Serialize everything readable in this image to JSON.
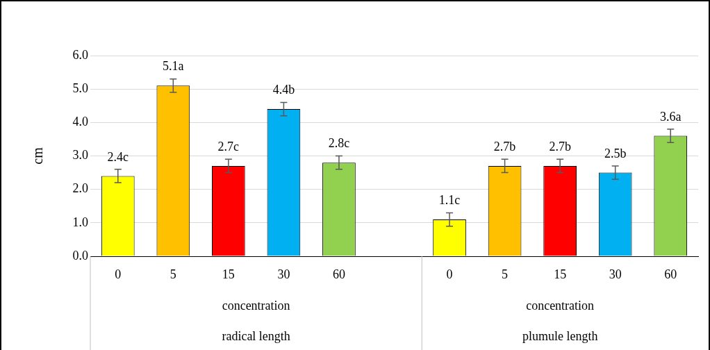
{
  "chart_data": {
    "type": "bar",
    "ylabel": "cm",
    "categories": [
      "0",
      "5",
      "15",
      "30",
      "60",
      null,
      "0",
      "5",
      "15",
      "30",
      "60"
    ],
    "values": [
      2.4,
      5.1,
      2.7,
      4.4,
      2.8,
      null,
      1.1,
      2.7,
      2.7,
      2.5,
      3.6
    ],
    "colors": [
      "#ffff00",
      "#ffc000",
      "#ff0000",
      "#00b0f0",
      "#92d050",
      null,
      "#ffff00",
      "#ffc000",
      "#ff0000",
      "#00b0f0",
      "#92d050"
    ],
    "errors": [
      0.2,
      0.2,
      0.2,
      0.2,
      0.2,
      null,
      0.2,
      0.2,
      0.2,
      0.2,
      0.2
    ],
    "value_labels": [
      "2.4c",
      "5.1a",
      "2.7c",
      "4.4b",
      "2.8c",
      null,
      "1.1c",
      "2.7b",
      "2.7b",
      "2.5b",
      "3.6a"
    ],
    "ylim": [
      0,
      6
    ],
    "yticks": [
      {
        "value": 0,
        "label": "0.0"
      },
      {
        "value": 1,
        "label": "1.0"
      },
      {
        "value": 2,
        "label": "2.0"
      },
      {
        "value": 3,
        "label": "3.0"
      },
      {
        "value": 4,
        "label": "4.0"
      },
      {
        "value": 5,
        "label": "5.0"
      },
      {
        "value": 6,
        "label": "6.0"
      }
    ],
    "grid": "y",
    "annotations": [
      "concentration",
      "radical length",
      "concentration",
      "plumule length"
    ]
  }
}
